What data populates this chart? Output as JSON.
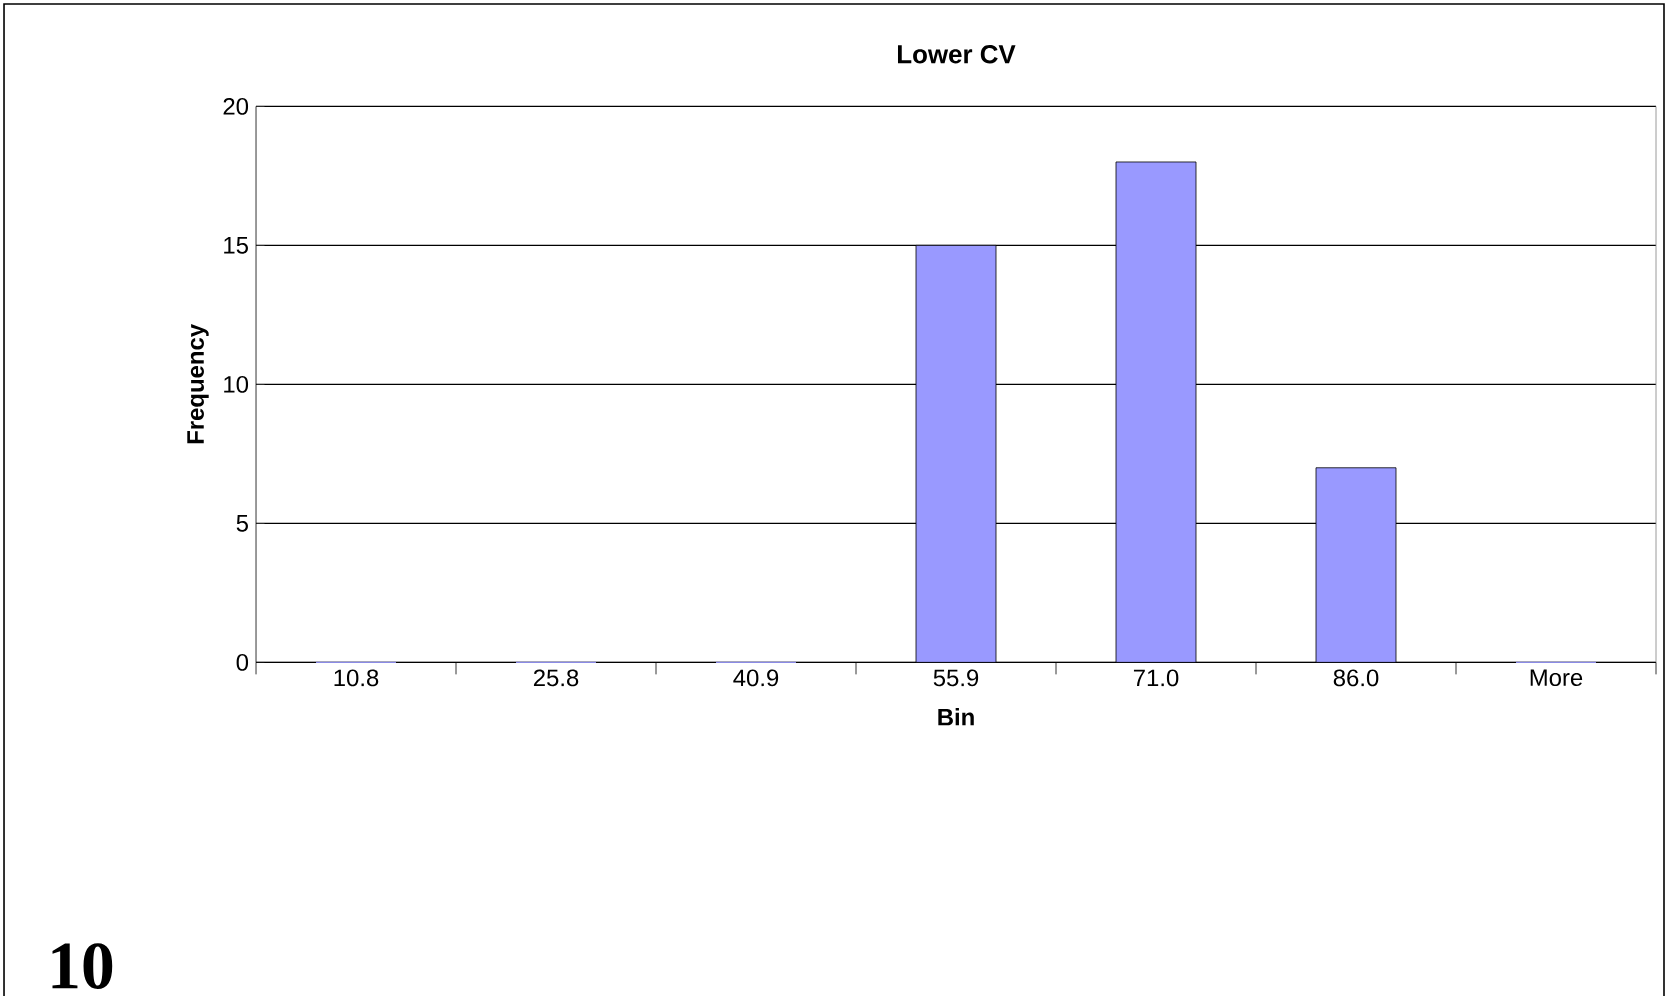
{
  "chart_data": {
    "type": "bar",
    "title": "Lower CV",
    "xlabel": "Bin",
    "ylabel": "Frequency",
    "categories": [
      "10.8",
      "25.8",
      "40.9",
      "55.9",
      "71.0",
      "86.0",
      "More"
    ],
    "values": [
      0,
      0,
      0,
      15,
      18,
      7,
      0
    ],
    "color": "#9999ff",
    "ylim": [
      0,
      20
    ],
    "yticks": [
      0,
      5,
      10,
      15,
      20
    ],
    "grid": "y",
    "annotations": [
      "10"
    ]
  }
}
